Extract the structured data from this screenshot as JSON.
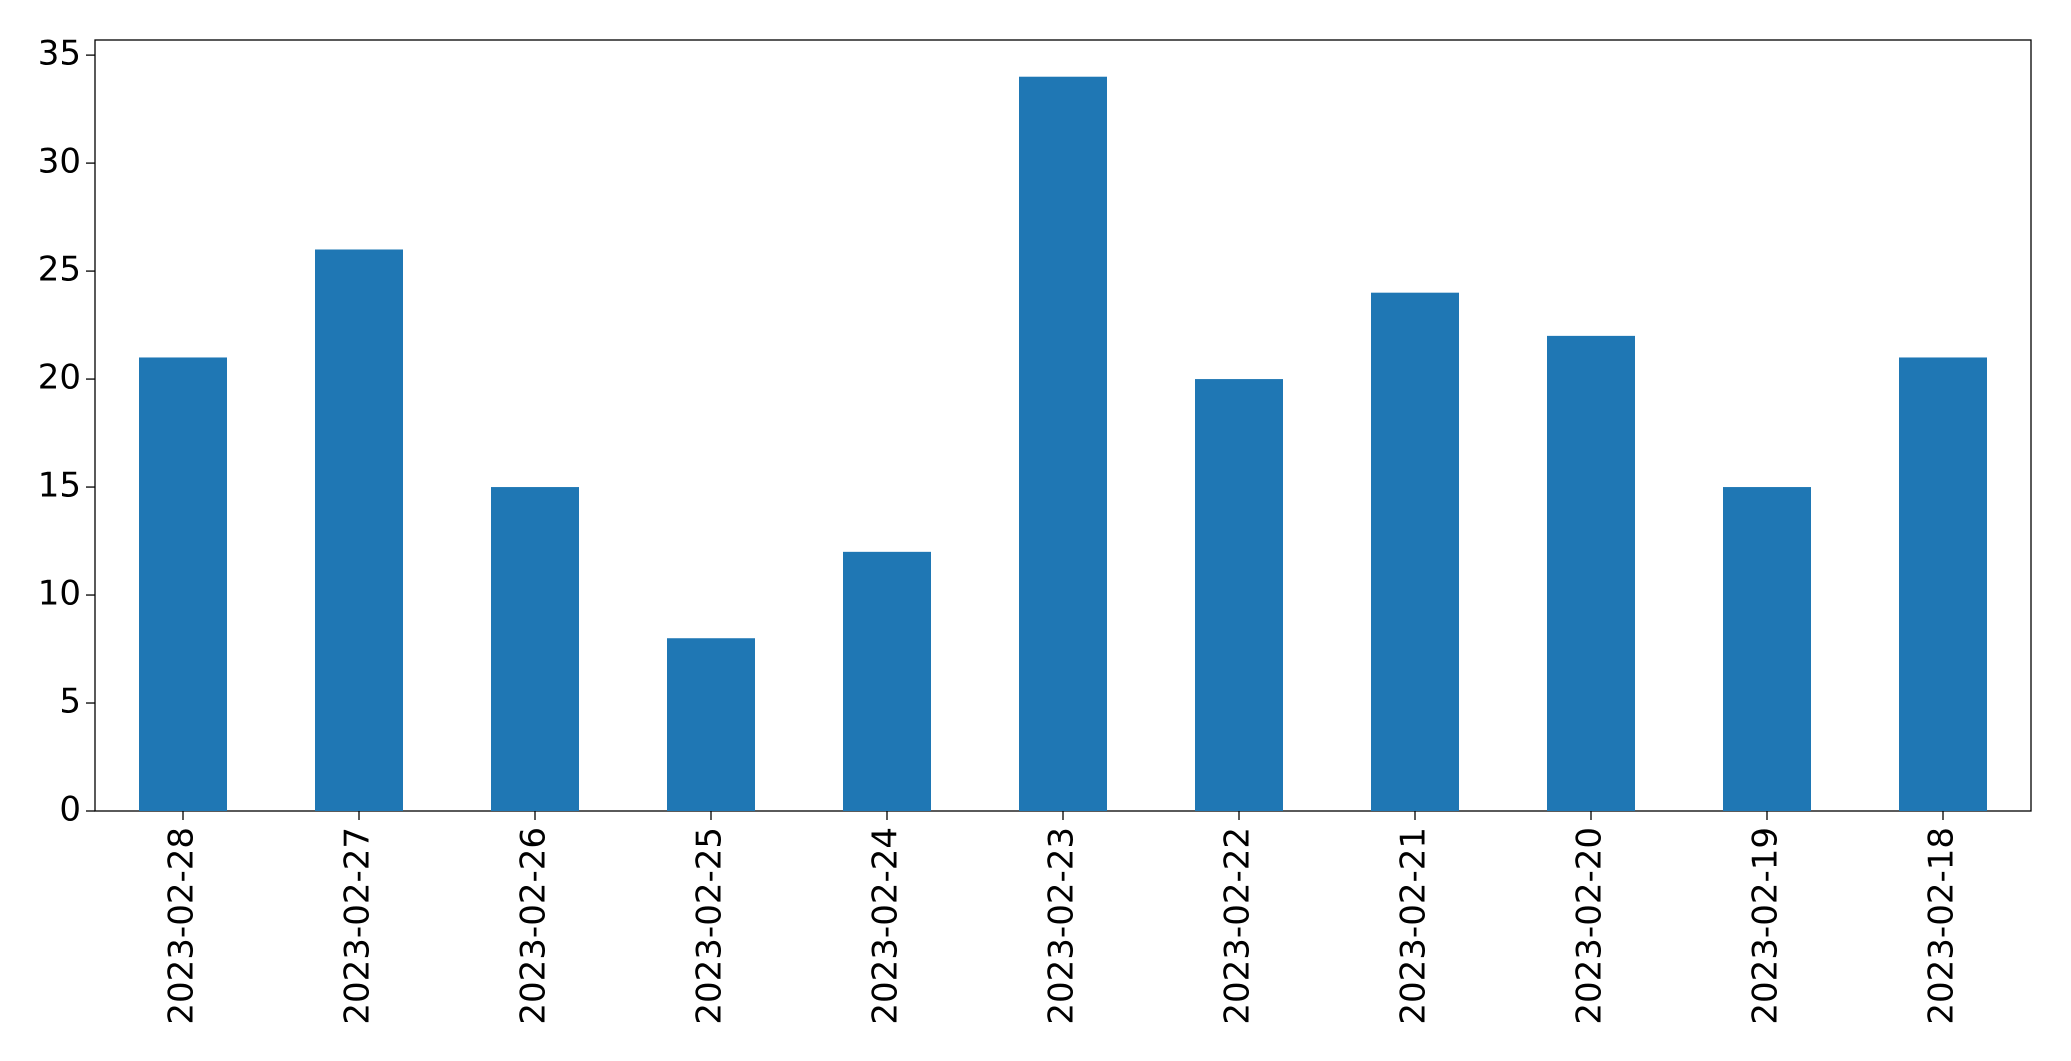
{
  "chart_data": {
    "type": "bar",
    "categories": [
      "2023-02-28",
      "2023-02-27",
      "2023-02-26",
      "2023-02-25",
      "2023-02-24",
      "2023-02-23",
      "2023-02-22",
      "2023-02-21",
      "2023-02-20",
      "2023-02-19",
      "2023-02-18"
    ],
    "values": [
      21,
      26,
      15,
      8,
      12,
      34,
      20,
      24,
      22,
      15,
      21
    ],
    "color": "#1f77b4",
    "ylim": [
      0,
      35.7
    ],
    "yticks": [
      0,
      5,
      10,
      15,
      20,
      25,
      30,
      35
    ],
    "grid": false
  }
}
